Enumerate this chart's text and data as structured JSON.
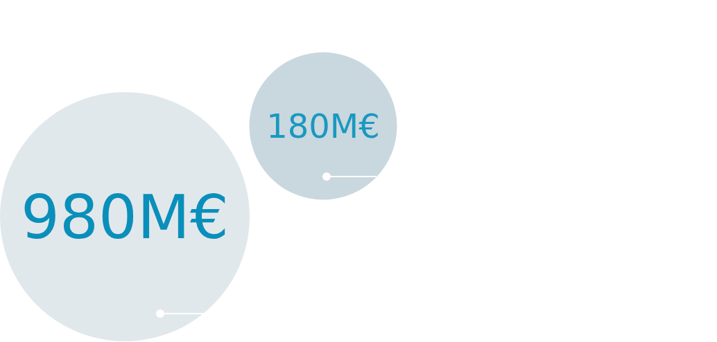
{
  "chart_data": {
    "type": "other",
    "values": [
      980,
      180
    ],
    "value_labels": [
      "980M€",
      "180M€"
    ],
    "colors": [
      "#e1e8ec",
      "#c8d8de"
    ]
  }
}
